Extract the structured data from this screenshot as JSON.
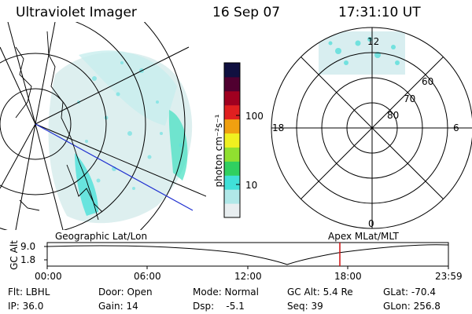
{
  "header": {
    "instrument": "Ultraviolet Imager",
    "date": "16 Sep 07",
    "time": "17:31:10 UT"
  },
  "colorbar": {
    "unit_label": "photon cm⁻²s⁻¹",
    "ticks": [
      "100",
      "10"
    ],
    "colors": [
      "#e8eef0",
      "#b0e8e8",
      "#40e0d8",
      "#30d060",
      "#90e030",
      "#f0f020",
      "#f0a010",
      "#e02020",
      "#a00020",
      "#500030",
      "#101040"
    ]
  },
  "polar_plot": {
    "mlt_labels": {
      "top": "12",
      "left": "18",
      "right": "6",
      "bottom": "0"
    },
    "lat_labels": [
      "60",
      "70",
      "80"
    ]
  },
  "timeline": {
    "left_title": "Geographic Lat/Lon",
    "right_title": "Apex MLat/MLT",
    "y_axis_label": "GC Alt",
    "y_ticks": [
      "9.0",
      "1.8"
    ],
    "x_ticks": [
      "00:00",
      "06:00",
      "12:00",
      "18:00",
      "23:59"
    ],
    "marker_color": "#d01010"
  },
  "status": {
    "flt": "Flt: LBHL",
    "ip": "IP: 36.0",
    "door": "Door: Open",
    "gain": "Gain: 14",
    "mode": "Mode: Normal",
    "dsp": "Dsp:    -5.1",
    "gc_alt": "GC Alt: 5.4 Re",
    "seq": "Seq: 39",
    "glat": "GLat: -70.4",
    "glon": "GLon: 256.8"
  }
}
